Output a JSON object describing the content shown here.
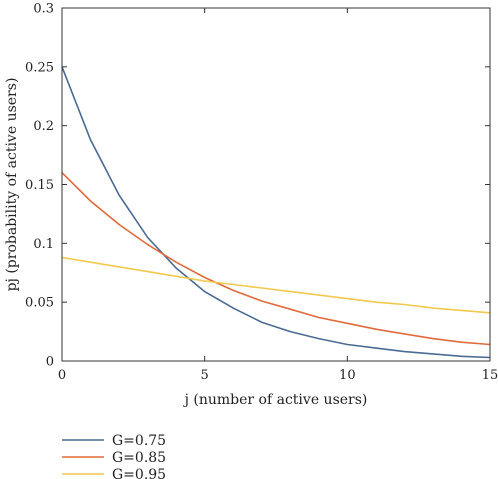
{
  "chart_data": {
    "type": "line",
    "xlabel": "j (number of active users)",
    "ylabel": "pj (probability of active users)",
    "xlim": [
      0,
      15
    ],
    "ylim": [
      0,
      0.3
    ],
    "xticks": [
      0,
      5,
      10,
      15
    ],
    "yticks": [
      0,
      0.05,
      0.1,
      0.15,
      0.2,
      0.25,
      0.3
    ],
    "xtick_labels": [
      "0",
      "5",
      "10",
      "15"
    ],
    "ytick_labels": [
      "0",
      "0.05",
      "0.1",
      "0.15",
      "0.2",
      "0.25",
      "0.3"
    ],
    "grid": false,
    "legend_position": "below-left",
    "x": [
      0,
      1,
      2,
      3,
      4,
      5,
      6,
      7,
      8,
      9,
      10,
      11,
      12,
      13,
      14,
      15
    ],
    "series": [
      {
        "name": "G=0.75",
        "color": "#4a6b94",
        "values": [
          0.25,
          0.188,
          0.141,
          0.105,
          0.079,
          0.059,
          0.045,
          0.033,
          0.025,
          0.019,
          0.014,
          0.011,
          0.008,
          0.006,
          0.004,
          0.003
        ]
      },
      {
        "name": "G=0.85",
        "color": "#e06b3c",
        "values": [
          0.16,
          0.136,
          0.116,
          0.099,
          0.084,
          0.071,
          0.06,
          0.051,
          0.044,
          0.037,
          0.032,
          0.027,
          0.023,
          0.019,
          0.016,
          0.014
        ]
      },
      {
        "name": "G=0.95",
        "color": "#f2c94c",
        "values": [
          0.088,
          0.084,
          0.08,
          0.076,
          0.072,
          0.068,
          0.065,
          0.062,
          0.059,
          0.056,
          0.053,
          0.05,
          0.048,
          0.045,
          0.043,
          0.041
        ]
      }
    ]
  }
}
